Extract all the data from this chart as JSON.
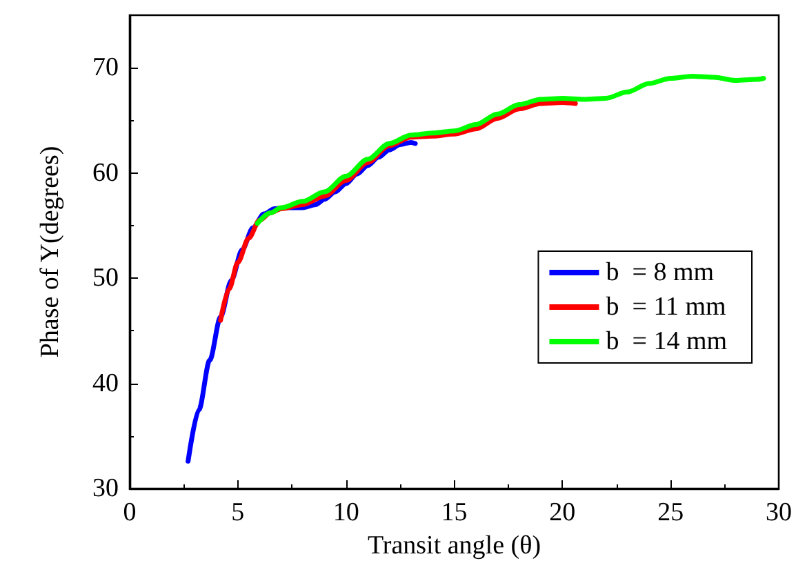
{
  "chart_data": {
    "type": "line",
    "xlabel": "Transit angle (θ)",
    "ylabel": "Phase of Y(degrees)",
    "xlim": [
      0,
      30
    ],
    "xticks": [
      0,
      5,
      10,
      15,
      20,
      25,
      30
    ],
    "ylim": [
      30,
      75
    ],
    "yticks": [
      30,
      40,
      50,
      60,
      70
    ],
    "grid": false,
    "legend": "right",
    "marker": "none",
    "line_style": "solid",
    "series": [
      {
        "name": "b  = 8 mm",
        "color": "#0000ff",
        "x": [
          2.7,
          3.2,
          3.7,
          4.2,
          4.7,
          5.2,
          5.7,
          6.2,
          6.7,
          7.2,
          8,
          8.6,
          9,
          9.5,
          10,
          10.5,
          11,
          11.5,
          12,
          12.5,
          13,
          13.2
        ],
        "values": [
          32.6,
          37.5,
          42.2,
          46.3,
          49.8,
          52.7,
          54.8,
          56.1,
          56.6,
          56.7,
          56.7,
          57,
          57.5,
          58.2,
          59,
          59.9,
          60.7,
          61.5,
          62.2,
          62.7,
          62.9,
          62.8
        ]
      },
      {
        "name": "b  = 11 mm",
        "color": "#ff0000",
        "x": [
          4.2,
          4.6,
          5,
          5.5,
          6,
          6.5,
          7,
          8,
          9,
          10,
          11,
          12,
          13,
          14,
          15,
          16,
          17,
          18,
          19,
          20,
          20.6
        ],
        "values": [
          46,
          49,
          51.5,
          53.8,
          55.5,
          56.2,
          56.6,
          57,
          57.8,
          59.3,
          61,
          62.6,
          63.4,
          63.5,
          63.7,
          64.2,
          65.2,
          66.1,
          66.6,
          66.7,
          66.6
        ]
      },
      {
        "name": "b  = 14 mm",
        "color": "#00ff00",
        "x": [
          5.9,
          6.5,
          7,
          8,
          9,
          10,
          11,
          12,
          13,
          14,
          15,
          16,
          17,
          18,
          19,
          20,
          21,
          22,
          23,
          24,
          25,
          26,
          27,
          28,
          29,
          29.3
        ],
        "values": [
          55.2,
          56.2,
          56.7,
          57.3,
          58.2,
          59.7,
          61.3,
          62.8,
          63.6,
          63.8,
          64,
          64.6,
          65.6,
          66.5,
          67,
          67.1,
          67,
          67.1,
          67.7,
          68.5,
          69,
          69.2,
          69.1,
          68.8,
          68.9,
          69
        ]
      }
    ]
  }
}
